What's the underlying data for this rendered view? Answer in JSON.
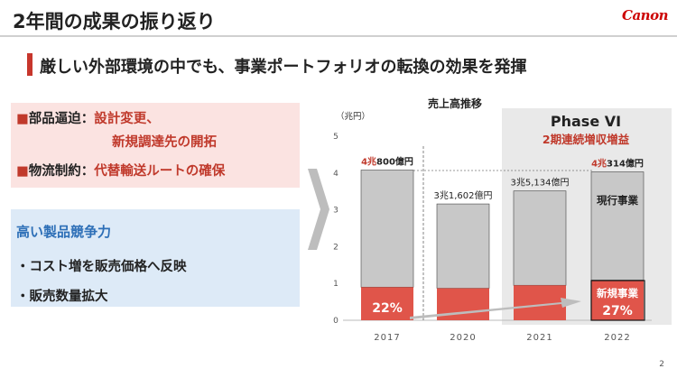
{
  "header": {
    "title": "2年間の成果の振り返り",
    "logo": "Canon"
  },
  "subtitle": "厳しい外部環境の中でも、事業ポートフォリオの転換の効果を発揮",
  "left": {
    "red_items": [
      {
        "bullet": "■",
        "label": "部品逼迫：",
        "line1": "設計変更、",
        "line2": "新規調達先の開拓"
      },
      {
        "bullet": "■",
        "label": "物流制約：",
        "line1": "代替輸送ルートの確保"
      }
    ],
    "blue": {
      "heading": "高い製品競争力",
      "items": [
        "・コスト増を販売価格へ反映",
        "・販売数量拡大"
      ]
    }
  },
  "chart_data": {
    "type": "bar",
    "title": "売上高推移",
    "ylabel": "（兆円）",
    "ylim": [
      0,
      5
    ],
    "yticks": [
      "0",
      "1",
      "2",
      "3",
      "4",
      "5"
    ],
    "categories": [
      "2017",
      "2020",
      "2021",
      "2022"
    ],
    "totals": [
      4.08,
      3.1602,
      3.5134,
      4.0314
    ],
    "bottom_segment": [
      0.9,
      0.87,
      0.95,
      1.09
    ],
    "total_labels": [
      {
        "red": "4兆",
        "black": "800億円"
      },
      {
        "red": "",
        "black": "3兆1,602億円"
      },
      {
        "red": "",
        "black": "3兆5,134億円"
      },
      {
        "red": "4兆",
        "black": "314億円"
      }
    ],
    "phase_title": "Phase VI",
    "phase_sub": "2期連続増収増益",
    "label_2017_share": "22%",
    "label_new_business": "新規事業",
    "label_new_share": "27%",
    "label_current_business": "現行事業",
    "colors": {
      "bar": "#c8c8c8",
      "bar_bottom": "#e0554a",
      "phase_bg": "#e9e9e9",
      "red_text": "#c0392b"
    }
  },
  "page_number": "2"
}
